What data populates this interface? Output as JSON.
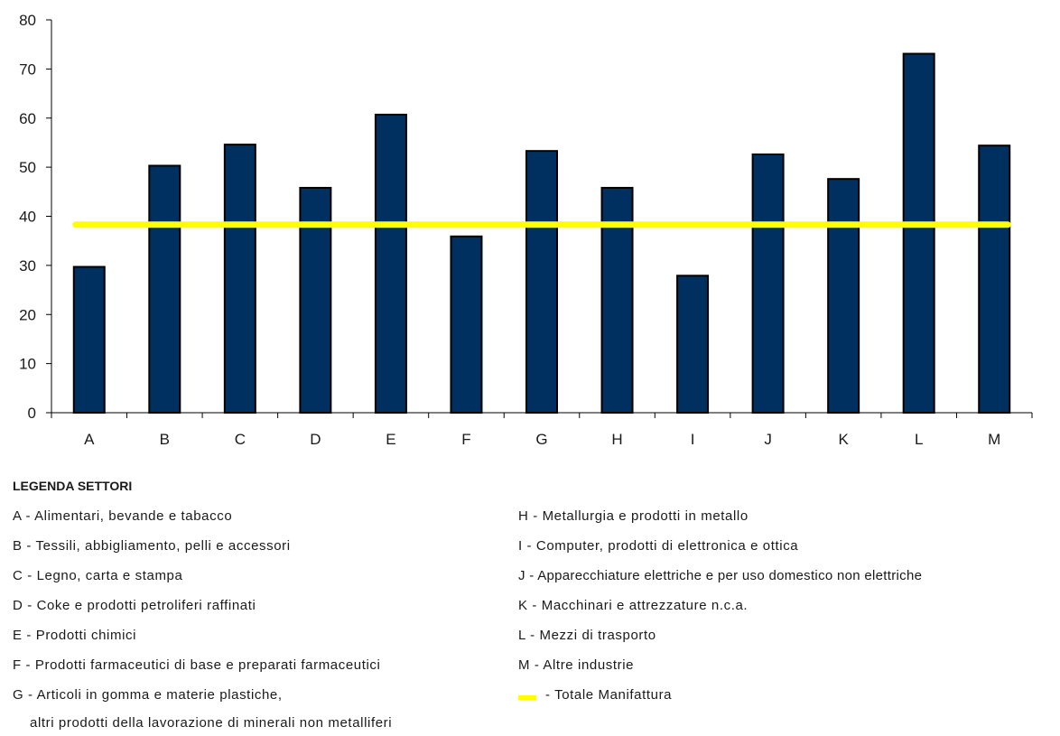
{
  "chart_data": {
    "type": "bar",
    "categories": [
      "A",
      "B",
      "C",
      "D",
      "E",
      "F",
      "G",
      "H",
      "I",
      "J",
      "K",
      "L",
      "M"
    ],
    "values": [
      29.7,
      50.3,
      54.6,
      45.8,
      60.7,
      35.9,
      53.3,
      45.8,
      27.9,
      52.6,
      47.6,
      73.1,
      54.4
    ],
    "yticks": [
      "0",
      "10",
      "20",
      "30",
      "40",
      "50",
      "60",
      "70",
      "80"
    ],
    "ylim": [
      0,
      80
    ],
    "grid": false,
    "bar_color": "#00305f",
    "reference_line": {
      "value": 38.3,
      "color": "#ffff00"
    }
  },
  "legend": {
    "title": "LEGENDA SETTORI",
    "left_items": [
      "A - Alimentari, bevande e tabacco",
      "B - Tessili, abbigliamento, pelli e accessori",
      "C - Legno, carta e stampa",
      "D - Coke e prodotti petroliferi raffinati",
      "E - Prodotti chimici",
      "F - Prodotti farmaceutici di base e preparati farmaceutici",
      "G - Articoli in gomma e materie plastiche,",
      "altri prodotti della lavorazione di minerali non metalliferi"
    ],
    "right_items": [
      "H - Metallurgia e prodotti in metallo",
      "I - Computer, prodotti di elettronica e ottica",
      "J - Apparecchiature elettriche e per uso domestico non elettriche",
      "K - Macchinari e attrezzature n.c.a.",
      "L - Mezzi di trasporto",
      "M - Altre industrie"
    ],
    "total_label": "-  Totale Manifattura"
  }
}
